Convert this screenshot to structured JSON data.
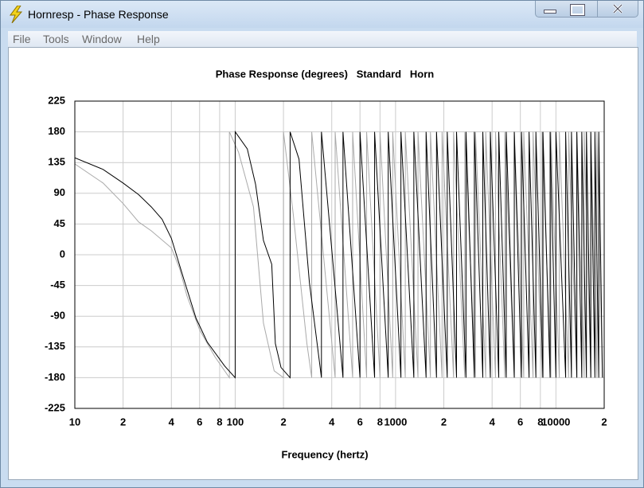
{
  "window": {
    "title": "Hornresp - Phase Response",
    "menu": [
      "File",
      "Tools",
      "Window",
      "Help"
    ]
  },
  "chart_data": {
    "type": "line",
    "title": "Phase Response (degrees)   Standard   Horn",
    "x_label": "Frequency (hertz)",
    "x_log": true,
    "grid": true,
    "xlim": [
      10,
      20000
    ],
    "ylim": [
      -225,
      225
    ],
    "xticks": [
      10,
      {
        "value": 20,
        "label": "2"
      },
      {
        "value": 40,
        "label": "4"
      },
      {
        "value": 60,
        "label": "6"
      },
      {
        "value": 80,
        "label": "8"
      },
      100,
      {
        "value": 200,
        "label": "2"
      },
      {
        "value": 400,
        "label": "4"
      },
      {
        "value": 600,
        "label": "6"
      },
      {
        "value": 800,
        "label": "8"
      },
      1000,
      {
        "value": 2000,
        "label": "2"
      },
      {
        "value": 4000,
        "label": "4"
      },
      {
        "value": 6000,
        "label": "6"
      },
      {
        "value": 8000,
        "label": "8"
      },
      10000,
      {
        "value": 20000,
        "label": "2"
      }
    ],
    "yticks": [
      225,
      180,
      135,
      90,
      45,
      0,
      -45,
      -90,
      -135,
      -180,
      -225
    ],
    "series": [
      {
        "color": "#aaaaaa",
        "x": [
          10,
          15,
          20,
          25,
          30,
          40,
          45,
          50,
          60,
          75,
          92,
          92,
          105,
          130,
          150,
          175,
          200,
          200,
          230,
          280,
          300,
          300,
          420,
          420,
          540,
          540,
          660,
          660,
          800,
          800,
          960,
          960,
          1150,
          1150,
          1380,
          1380,
          1650,
          1650,
          1950,
          1950,
          2300,
          2300,
          2700,
          2700,
          3150,
          3150,
          3650,
          3650,
          4200,
          4200,
          4800,
          4800,
          5500,
          5500,
          6300,
          6300,
          7200,
          7200,
          8200,
          8200,
          9300,
          9300,
          10500,
          10500,
          12000,
          12000,
          13500,
          13500,
          15000,
          15000,
          16500,
          16500,
          18000,
          18000,
          19500
        ],
        "values": [
          133,
          105,
          75,
          48,
          35,
          10,
          -20,
          -60,
          -110,
          -150,
          -180,
          180,
          150,
          70,
          -100,
          -170,
          -180,
          180,
          60,
          -130,
          -180,
          180,
          -180,
          180,
          -180,
          180,
          -180,
          180,
          -180,
          180,
          -180,
          180,
          -180,
          180,
          -180,
          180,
          -180,
          180,
          -180,
          180,
          -180,
          180,
          -180,
          180,
          -180,
          180,
          -180,
          180,
          -180,
          180,
          -180,
          180,
          -180,
          180,
          -180,
          180,
          -180,
          180,
          -180,
          180,
          -180,
          180,
          -180,
          180,
          -180,
          180,
          -180,
          180,
          -180,
          180,
          -180,
          180,
          -180,
          180,
          -180
        ]
      },
      {
        "color": "#000000",
        "x": [
          10,
          15,
          20,
          25,
          30,
          35,
          40,
          48,
          57,
          67,
          86,
          100,
          100,
          119,
          134,
          150,
          169,
          178,
          193,
          220,
          220,
          250,
          290,
          345,
          345,
          470,
          470,
          600,
          600,
          740,
          740,
          900,
          900,
          1080,
          1080,
          1300,
          1300,
          1550,
          1550,
          1800,
          1800,
          2100,
          2100,
          2400,
          2400,
          2750,
          2750,
          3100,
          3100,
          3500,
          3500,
          3900,
          3900,
          4400,
          4400,
          4900,
          4900,
          5500,
          5500,
          6100,
          6100,
          6800,
          6800,
          7500,
          7500,
          8300,
          8300,
          9200,
          9200,
          10000,
          10000,
          11500,
          11500,
          12500,
          12500,
          13500,
          13500,
          14500,
          14500,
          15500,
          15500,
          16500,
          16500,
          17500,
          17500,
          18500,
          18500,
          19500
        ],
        "values": [
          142,
          125,
          105,
          88,
          70,
          52,
          24,
          -37,
          -93,
          -128,
          -163,
          -180,
          180,
          155,
          103,
          21,
          -14,
          -130,
          -165,
          -180,
          180,
          140,
          -40,
          -180,
          180,
          -180,
          180,
          -180,
          180,
          -180,
          180,
          -180,
          180,
          -180,
          180,
          -180,
          180,
          -180,
          180,
          -180,
          180,
          -180,
          180,
          -180,
          180,
          -180,
          180,
          -180,
          180,
          -180,
          180,
          -180,
          180,
          -180,
          180,
          -180,
          180,
          -180,
          180,
          -180,
          180,
          -180,
          180,
          -180,
          180,
          -180,
          180,
          -180,
          180,
          -180,
          180,
          -180,
          180,
          -180,
          180,
          -180,
          180,
          -180,
          180,
          -180,
          180,
          -180,
          180,
          -180,
          180,
          -180,
          180,
          -180
        ]
      }
    ]
  }
}
